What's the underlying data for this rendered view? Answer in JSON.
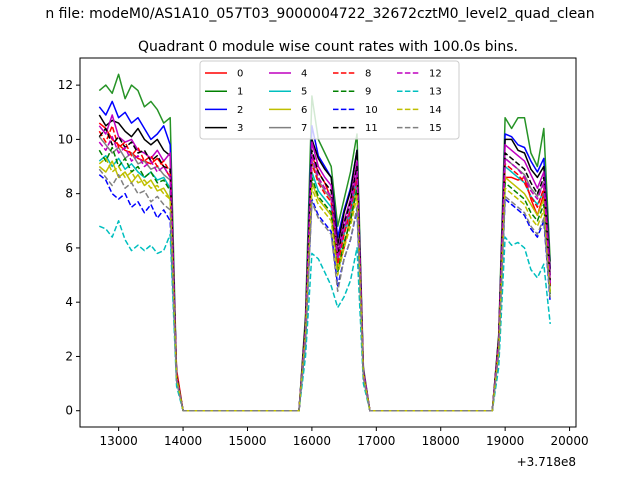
{
  "suptitle": "n file: modeM0/AS1A10_057T03_9000004722_32672cztM0_level2_quad_clean",
  "chart_data": {
    "type": "line",
    "title": "Quadrant 0 module wise count rates with 100.0s bins.",
    "xlabel": "",
    "ylabel": "",
    "x_offset_label": "+3.718e8",
    "xlim": [
      12400,
      20100
    ],
    "ylim": [
      -0.6,
      13.0
    ],
    "xticks": [
      13000,
      14000,
      15000,
      16000,
      17000,
      18000,
      19000,
      20000
    ],
    "yticks": [
      0,
      2,
      4,
      6,
      8,
      10,
      12
    ],
    "grid": false,
    "legend_position": "top-center",
    "legend_columns": 4,
    "x": [
      12700,
      12800,
      12900,
      13000,
      13100,
      13200,
      13300,
      13400,
      13500,
      13600,
      13700,
      13800,
      13900,
      14000,
      15800,
      15900,
      16000,
      16100,
      16200,
      16300,
      16400,
      16500,
      16600,
      16700,
      16800,
      16900,
      18800,
      18900,
      19000,
      19100,
      19200,
      19300,
      19400,
      19500,
      19600,
      19700
    ],
    "series": [
      {
        "name": "0",
        "color": "#ff0000",
        "dash": "solid",
        "values": [
          10.6,
          10.4,
          10.0,
          9.8,
          9.6,
          9.5,
          9.3,
          9.2,
          9.1,
          9.3,
          9.0,
          8.6,
          1.5,
          0,
          0,
          3.0,
          9.4,
          8.8,
          8.4,
          7.8,
          5.2,
          6.0,
          7.2,
          8.5,
          1.5,
          0,
          0,
          2.5,
          8.6,
          8.6,
          8.5,
          8.6,
          7.8,
          7.2,
          8.0,
          4.6
        ]
      },
      {
        "name": "1",
        "color": "#008000",
        "dash": "solid",
        "values": [
          11.8,
          12.0,
          11.7,
          12.4,
          11.5,
          12.0,
          11.8,
          11.2,
          11.4,
          11.1,
          10.6,
          10.8,
          1.3,
          0,
          0,
          3.5,
          11.6,
          10.0,
          9.5,
          9.0,
          6.8,
          7.8,
          8.8,
          10.2,
          1.6,
          0,
          0,
          2.8,
          10.8,
          10.4,
          10.8,
          10.8,
          9.5,
          9.0,
          10.4,
          5.5
        ]
      },
      {
        "name": "2",
        "color": "#0000ff",
        "dash": "solid",
        "values": [
          11.2,
          10.9,
          11.4,
          10.8,
          11.0,
          10.6,
          10.8,
          10.4,
          10.0,
          10.2,
          10.5,
          9.8,
          1.2,
          0,
          0,
          3.2,
          10.5,
          9.4,
          9.0,
          8.6,
          6.4,
          7.4,
          8.2,
          9.6,
          1.5,
          0,
          0,
          2.6,
          10.2,
          10.1,
          9.8,
          9.7,
          9.2,
          8.8,
          9.3,
          5.2
        ]
      },
      {
        "name": "3",
        "color": "#000000",
        "dash": "solid",
        "values": [
          10.9,
          10.5,
          10.7,
          10.6,
          10.3,
          10.1,
          10.4,
          10.0,
          9.8,
          10.0,
          9.6,
          9.4,
          1.3,
          0,
          0,
          3.3,
          10.0,
          9.3,
          8.9,
          8.6,
          6.1,
          7.3,
          8.1,
          9.6,
          1.4,
          0,
          0,
          2.7,
          10.0,
          10.0,
          9.6,
          9.5,
          8.9,
          8.6,
          9.0,
          5.2
        ]
      },
      {
        "name": "4",
        "color": "#bf00bf",
        "dash": "solid",
        "values": [
          10.5,
          10.2,
          10.9,
          10.1,
          9.9,
          10.0,
          9.6,
          9.5,
          9.3,
          9.6,
          9.2,
          9.5,
          1.3,
          0,
          0,
          3.1,
          9.9,
          9.0,
          8.6,
          8.3,
          5.8,
          7.0,
          7.8,
          9.2,
          1.5,
          0,
          0,
          2.6,
          9.8,
          9.6,
          9.4,
          9.2,
          8.7,
          8.2,
          8.8,
          5.0
        ]
      },
      {
        "name": "5",
        "color": "#00bfbf",
        "dash": "solid",
        "values": [
          9.2,
          9.4,
          9.0,
          9.3,
          8.9,
          9.1,
          8.8,
          8.6,
          8.8,
          8.5,
          8.6,
          8.2,
          1.2,
          0,
          0,
          2.9,
          8.8,
          8.1,
          7.8,
          7.5,
          5.5,
          6.5,
          7.3,
          8.5,
          1.3,
          0,
          0,
          2.4,
          9.0,
          8.8,
          8.6,
          8.4,
          7.9,
          7.6,
          8.1,
          4.6
        ]
      },
      {
        "name": "6",
        "color": "#bfbf00",
        "dash": "solid",
        "values": [
          9.0,
          8.8,
          9.2,
          8.6,
          8.8,
          8.4,
          8.7,
          8.3,
          8.5,
          8.1,
          8.2,
          7.8,
          1.2,
          0,
          0,
          2.8,
          8.4,
          7.8,
          7.5,
          7.2,
          5.2,
          6.2,
          7.0,
          8.1,
          1.3,
          0,
          0,
          2.3,
          8.6,
          8.4,
          8.2,
          8.0,
          7.6,
          7.2,
          7.8,
          4.4
        ]
      },
      {
        "name": "7",
        "color": "#808080",
        "dash": "solid",
        "values": [
          10.1,
          9.8,
          9.5,
          9.7,
          9.3,
          9.5,
          9.1,
          9.2,
          8.9,
          9.0,
          8.7,
          8.5,
          1.2,
          0,
          0,
          3.0,
          9.2,
          8.5,
          8.1,
          7.8,
          5.6,
          6.7,
          7.5,
          8.8,
          1.4,
          0,
          0,
          2.5,
          9.3,
          9.1,
          8.9,
          8.7,
          8.2,
          7.9,
          8.4,
          4.8
        ]
      },
      {
        "name": "8",
        "color": "#ff0000",
        "dash": "dashed",
        "values": [
          10.3,
          9.9,
          10.5,
          9.7,
          9.9,
          9.4,
          9.7,
          9.2,
          9.4,
          9.0,
          9.2,
          8.8,
          1.3,
          0,
          0,
          3.0,
          9.1,
          8.4,
          8.0,
          7.7,
          5.4,
          6.5,
          7.4,
          8.6,
          1.4,
          0,
          0,
          2.5,
          9.1,
          8.9,
          8.7,
          8.4,
          7.9,
          7.5,
          8.2,
          4.6
        ]
      },
      {
        "name": "9",
        "color": "#008000",
        "dash": "dashed",
        "values": [
          9.6,
          9.2,
          9.7,
          9.0,
          9.3,
          8.8,
          9.0,
          8.6,
          8.8,
          8.4,
          8.5,
          8.1,
          1.2,
          0,
          0,
          2.8,
          8.6,
          7.9,
          7.6,
          7.3,
          5.1,
          6.2,
          7.0,
          8.2,
          1.3,
          0,
          0,
          2.3,
          8.4,
          8.2,
          8.0,
          7.8,
          7.3,
          7.0,
          7.6,
          4.3
        ]
      },
      {
        "name": "10",
        "color": "#0000ff",
        "dash": "dashed",
        "values": [
          8.7,
          8.5,
          8.0,
          7.8,
          8.0,
          7.5,
          7.7,
          7.3,
          7.6,
          7.1,
          7.4,
          7.0,
          1.1,
          0,
          0,
          2.5,
          7.8,
          7.2,
          6.9,
          6.6,
          4.6,
          5.6,
          6.3,
          7.4,
          1.2,
          0,
          0,
          2.1,
          7.8,
          7.6,
          7.4,
          7.2,
          6.7,
          6.4,
          7.0,
          4.0
        ]
      },
      {
        "name": "11",
        "color": "#000000",
        "dash": "dashed",
        "values": [
          10.1,
          10.4,
          9.8,
          10.1,
          9.7,
          9.9,
          9.5,
          9.6,
          9.2,
          9.4,
          9.0,
          8.9,
          1.3,
          0,
          0,
          3.1,
          9.6,
          8.8,
          8.4,
          8.1,
          5.7,
          6.9,
          7.7,
          9.0,
          1.4,
          0,
          0,
          2.6,
          9.5,
          9.3,
          9.1,
          8.9,
          8.4,
          8.0,
          8.6,
          4.8
        ]
      },
      {
        "name": "12",
        "color": "#bf00bf",
        "dash": "dashed",
        "values": [
          9.9,
          9.6,
          10.1,
          9.5,
          9.7,
          9.2,
          9.4,
          9.0,
          9.2,
          8.8,
          9.0,
          8.6,
          1.2,
          0,
          0,
          3.0,
          9.4,
          8.6,
          8.2,
          7.9,
          5.6,
          6.7,
          7.5,
          8.8,
          1.4,
          0,
          0,
          2.5,
          9.3,
          9.1,
          8.9,
          8.6,
          8.1,
          7.8,
          8.4,
          4.7
        ]
      },
      {
        "name": "13",
        "color": "#00bfbf",
        "dash": "dashed",
        "values": [
          6.8,
          6.7,
          6.4,
          7.0,
          6.3,
          5.9,
          6.1,
          5.9,
          6.1,
          5.8,
          5.9,
          6.5,
          0.9,
          0,
          0,
          2.0,
          5.8,
          5.6,
          5.1,
          4.6,
          3.8,
          4.2,
          4.8,
          6.0,
          1.0,
          0,
          0,
          1.6,
          6.4,
          6.1,
          6.2,
          6.0,
          5.2,
          4.9,
          5.4,
          3.2
        ]
      },
      {
        "name": "14",
        "color": "#bfbf00",
        "dash": "dashed",
        "values": [
          9.1,
          9.3,
          8.8,
          9.0,
          8.6,
          8.8,
          8.4,
          8.5,
          8.2,
          8.3,
          8.0,
          7.8,
          1.2,
          0,
          0,
          2.8,
          8.2,
          7.6,
          7.3,
          7.0,
          5.0,
          6.0,
          6.8,
          7.9,
          1.3,
          0,
          0,
          2.2,
          8.2,
          8.0,
          7.8,
          7.6,
          7.1,
          6.8,
          7.4,
          4.2
        ]
      },
      {
        "name": "15",
        "color": "#808080",
        "dash": "dashed",
        "values": [
          8.9,
          8.6,
          8.3,
          8.7,
          8.2,
          8.4,
          8.0,
          8.1,
          7.7,
          7.9,
          7.6,
          7.4,
          1.1,
          0,
          0,
          2.6,
          7.7,
          7.1,
          6.8,
          6.5,
          4.4,
          5.6,
          6.3,
          7.5,
          1.2,
          0,
          0,
          2.1,
          7.9,
          7.7,
          7.5,
          7.3,
          6.8,
          6.5,
          7.1,
          4.1
        ]
      }
    ]
  }
}
